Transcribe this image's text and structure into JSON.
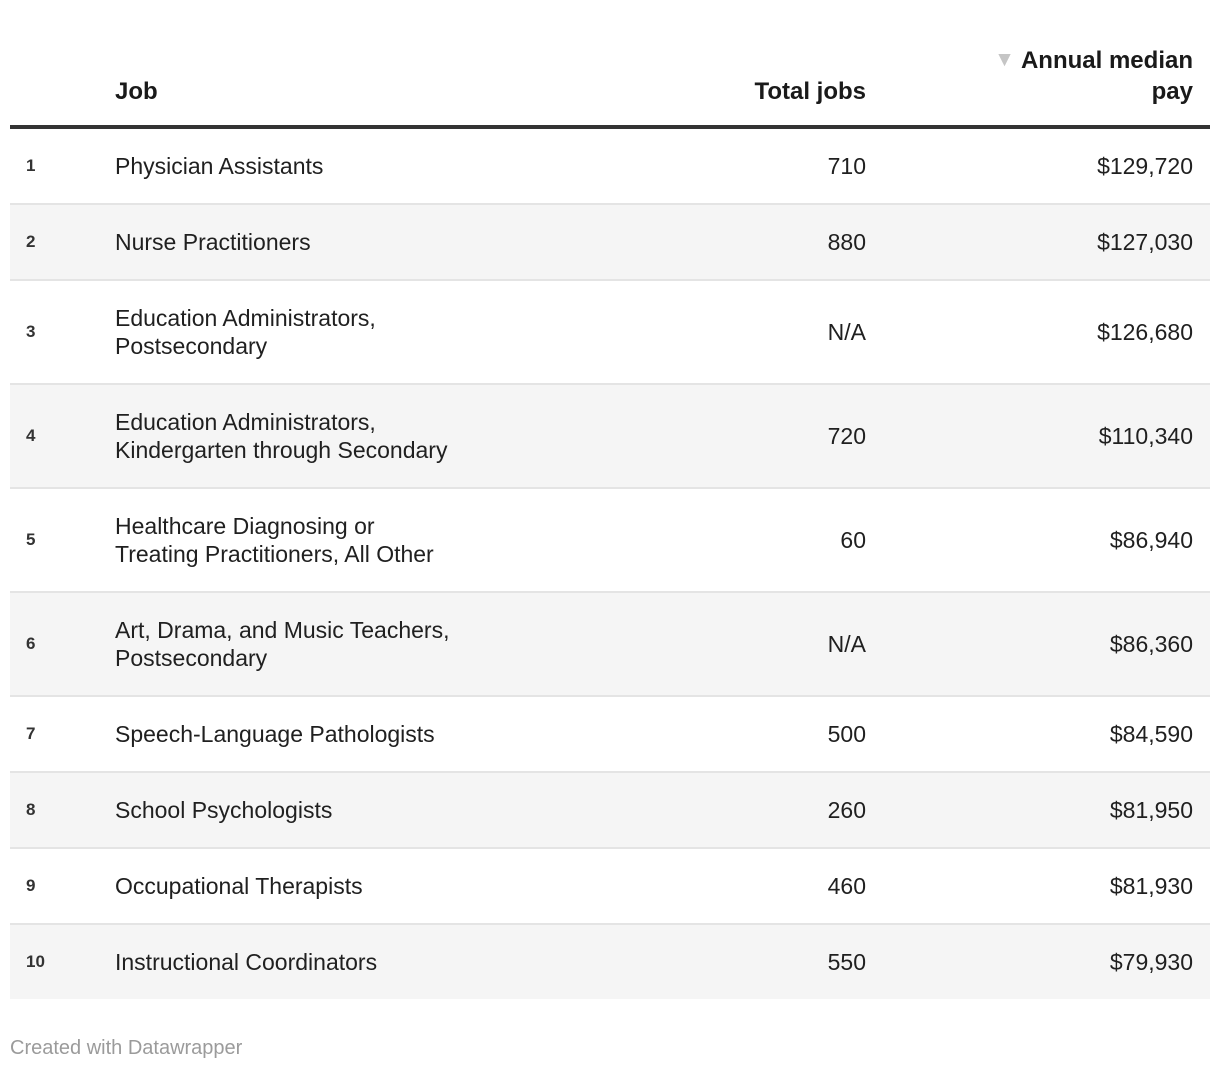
{
  "chart_data": {
    "type": "table",
    "columns": [
      "",
      "Job",
      "Total jobs",
      "Annual median pay"
    ],
    "rows": [
      {
        "rank": "1",
        "job": "Physician Assistants",
        "total_jobs": "710",
        "pay": "$129,720"
      },
      {
        "rank": "2",
        "job": "Nurse Practitioners",
        "total_jobs": "880",
        "pay": "$127,030"
      },
      {
        "rank": "3",
        "job": "Education Administrators,\nPostsecondary",
        "total_jobs": "N/A",
        "pay": "$126,680"
      },
      {
        "rank": "4",
        "job": "Education Administrators,\nKindergarten through Secondary",
        "total_jobs": "720",
        "pay": "$110,340"
      },
      {
        "rank": "5",
        "job": "Healthcare Diagnosing or\nTreating Practitioners, All Other",
        "total_jobs": "60",
        "pay": "$86,940"
      },
      {
        "rank": "6",
        "job": "Art, Drama, and Music Teachers,\nPostsecondary",
        "total_jobs": "N/A",
        "pay": "$86,360"
      },
      {
        "rank": "7",
        "job": "Speech-Language Pathologists",
        "total_jobs": "500",
        "pay": "$84,590"
      },
      {
        "rank": "8",
        "job": "School Psychologists",
        "total_jobs": "260",
        "pay": "$81,950"
      },
      {
        "rank": "9",
        "job": "Occupational Therapists",
        "total_jobs": "460",
        "pay": "$81,930"
      },
      {
        "rank": "10",
        "job": "Instructional Coordinators",
        "total_jobs": "550",
        "pay": "$79,930"
      }
    ],
    "sort": {
      "column": "Annual median pay",
      "direction": "descending"
    },
    "layout_hints": {
      "zebra_stripes": true,
      "stripe_color": "#f5f5f5",
      "header_rule_color": "#333333"
    }
  },
  "header": {
    "rank_label": "",
    "job_label": "Job",
    "total_jobs_label": "Total jobs",
    "pay_label": "Annual median\npay",
    "sort_indicator": "▼"
  },
  "footer": {
    "credit": "Created with Datawrapper"
  },
  "colors": {
    "stripe": "#f5f5f5",
    "header_rule": "#333333",
    "body_text": "#202020",
    "sort_arrow": "#c5c5c5",
    "credit_text": "#9b9b9b"
  }
}
